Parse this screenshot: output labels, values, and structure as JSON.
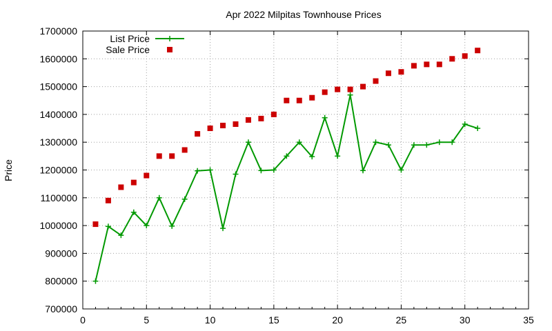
{
  "chart_data": {
    "type": "line",
    "title": "Apr 2022 Milpitas Townhouse Prices",
    "xlabel": "",
    "ylabel": "Price",
    "xlim": [
      0,
      35
    ],
    "ylim": [
      700000,
      1700000
    ],
    "xticks": [
      "0",
      "5",
      "10",
      "15",
      "20",
      "25",
      "30",
      "35"
    ],
    "yticks": [
      "700000",
      "800000",
      "900000",
      "1000000",
      "1100000",
      "1200000",
      "1300000",
      "1400000",
      "1500000",
      "1600000",
      "1700000"
    ],
    "grid": true,
    "legend_position": "top-left",
    "x": [
      1,
      2,
      3,
      4,
      5,
      6,
      7,
      8,
      9,
      10,
      11,
      12,
      13,
      14,
      15,
      16,
      17,
      18,
      19,
      20,
      21,
      22,
      23,
      24,
      25,
      26,
      27,
      28,
      29,
      30,
      31
    ],
    "series": [
      {
        "name": "List Price",
        "style": "linespoints",
        "color": "#009900",
        "values": [
          800000,
          997000,
          965000,
          1048000,
          1000000,
          1100000,
          998000,
          1095000,
          1197000,
          1200000,
          990000,
          1185000,
          1300000,
          1198000,
          1200000,
          1250000,
          1300000,
          1248000,
          1388000,
          1250000,
          1470000,
          1198000,
          1300000,
          1290000,
          1200000,
          1290000,
          1290000,
          1300000,
          1300000,
          1365000,
          1350000
        ]
      },
      {
        "name": "Sale Price",
        "style": "points",
        "color": "#cc0000",
        "values": [
          1005000,
          1090000,
          1138000,
          1155000,
          1180000,
          1250000,
          1250000,
          1272000,
          1330000,
          1350000,
          1360000,
          1365000,
          1380000,
          1385000,
          1400000,
          1450000,
          1450000,
          1460000,
          1480000,
          1490000,
          1490000,
          1500000,
          1520000,
          1548000,
          1553000,
          1575000,
          1580000,
          1580000,
          1600000,
          1610000,
          1630000
        ]
      }
    ]
  }
}
